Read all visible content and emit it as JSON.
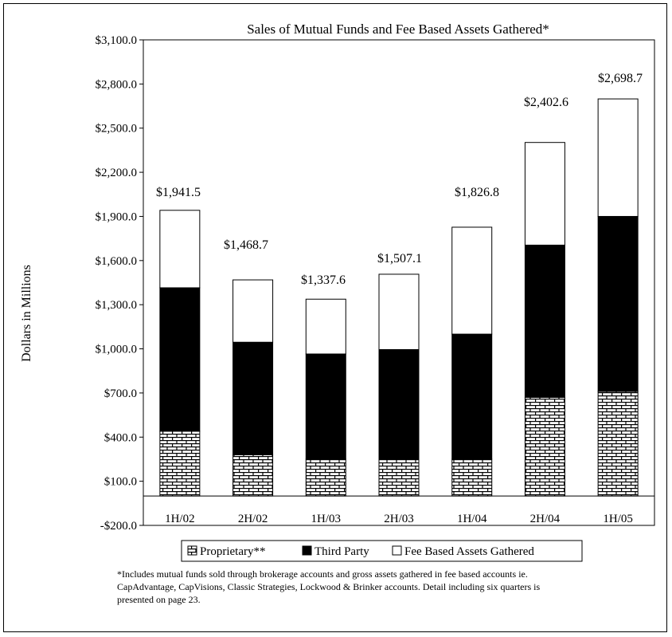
{
  "chart_data": {
    "type": "bar",
    "stacked": true,
    "title": "Sales of Mutual Funds and Fee Based Assets Gathered*",
    "xlabel": "",
    "ylabel": "Dollars in Millions",
    "ylim": [
      -200,
      3100
    ],
    "yticks": [
      -200,
      100,
      400,
      700,
      1000,
      1300,
      1600,
      1900,
      2200,
      2500,
      2800,
      3100
    ],
    "ytick_labels": [
      "-$200.0",
      "$100.0",
      "$400.0",
      "$700.0",
      "$1,000.0",
      "$1,300.0",
      "$1,600.0",
      "$1,900.0",
      "$2,200.0",
      "$2,500.0",
      "$2,800.0",
      "$3,100.0"
    ],
    "categories": [
      "1H/02",
      "2H/02",
      "1H/03",
      "2H/03",
      "1H/04",
      "2H/04",
      "1H/05"
    ],
    "series": [
      {
        "name": "Proprietary**",
        "color": "#ffffff",
        "pattern": "brick",
        "values": [
          440,
          280,
          250,
          250,
          250,
          670,
          710
        ]
      },
      {
        "name": "Third Party",
        "color": "#000000",
        "values": [
          975,
          765,
          715,
          745,
          850,
          1035,
          1190
        ]
      },
      {
        "name": "Fee Based Assets Gathered",
        "color": "#ffffff",
        "values": [
          526.5,
          423.7,
          372.6,
          512.1,
          726.8,
          697.6,
          798.7
        ]
      }
    ],
    "total_labels": [
      "$1,941.5",
      "$1,468.7",
      "$1,337.6",
      "$1,507.1",
      "$1,826.8",
      "$2,402.6",
      "$2,698.7"
    ],
    "legend_position": "bottom",
    "grid": false
  },
  "footnote": "*Includes mutual funds sold through brokerage accounts and gross assets gathered in fee based accounts ie. CapAdvantage, CapVisions, Classic Strategies, Lockwood & Brinker accounts. Detail including six quarters is presented on page 23."
}
